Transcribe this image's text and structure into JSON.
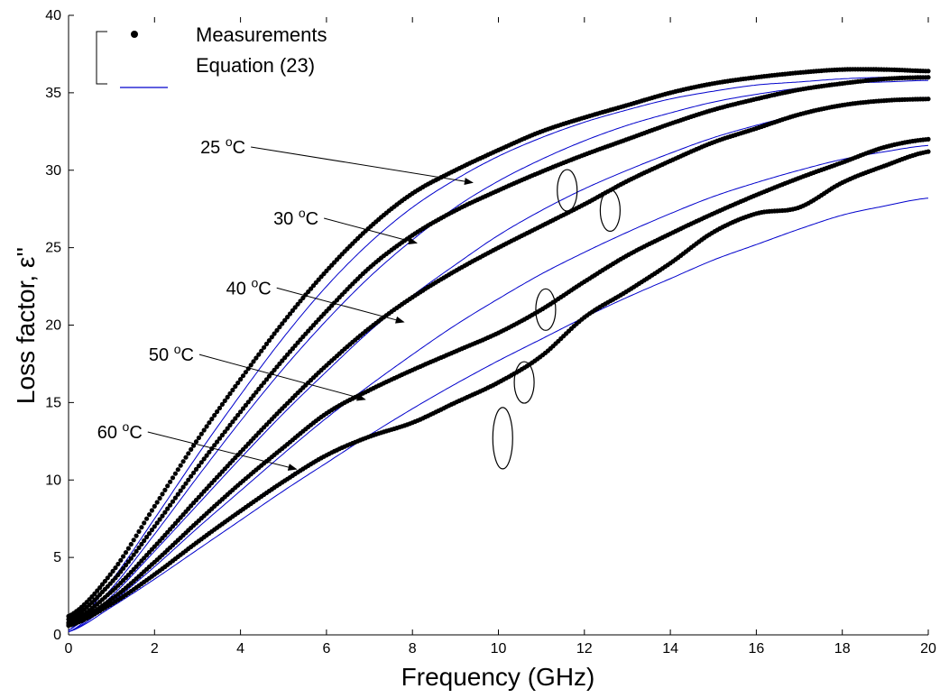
{
  "chart_data": {
    "type": "scatter",
    "title": "",
    "xlabel": "Frequency (GHz)",
    "ylabel": "Loss factor, ε''",
    "xlim": [
      0,
      20
    ],
    "ylim": [
      0,
      40
    ],
    "xticks": [
      0,
      2,
      4,
      6,
      8,
      10,
      12,
      14,
      16,
      18,
      20
    ],
    "yticks": [
      0,
      5,
      10,
      15,
      20,
      25,
      30,
      35,
      40
    ],
    "grid": false,
    "legend": {
      "placement": "top-left",
      "entries": [
        {
          "label": "Measurements",
          "marker": "dot",
          "color": "#000000"
        },
        {
          "label": "Equation (23)",
          "marker": "line",
          "color": "#0000cc"
        }
      ]
    },
    "series": [
      {
        "temperature": "25",
        "measured": {
          "x": [
            0,
            1,
            2,
            3,
            4,
            5,
            6,
            7,
            8,
            9,
            10,
            11,
            12,
            13,
            14,
            15,
            16,
            17,
            18,
            19,
            20
          ],
          "y": [
            1.2,
            4.0,
            8.3,
            12.6,
            16.5,
            20.2,
            23.5,
            26.3,
            28.5,
            30.0,
            31.3,
            32.5,
            33.4,
            34.2,
            35.0,
            35.6,
            36.0,
            36.3,
            36.5,
            36.5,
            36.4
          ]
        },
        "equation": {
          "x": [
            0,
            1,
            2,
            3,
            4,
            5,
            6,
            7,
            8,
            9,
            10,
            11,
            12,
            13,
            14,
            15,
            16,
            17,
            18,
            19,
            20
          ],
          "y": [
            0.3,
            3.5,
            7.5,
            11.6,
            15.5,
            19.2,
            22.5,
            25.3,
            27.6,
            29.4,
            30.9,
            32.1,
            33.1,
            33.9,
            34.6,
            35.1,
            35.5,
            35.7,
            35.9,
            36.0,
            36.0
          ]
        }
      },
      {
        "temperature": "30",
        "measured": {
          "x": [
            0,
            1,
            2,
            3,
            4,
            5,
            6,
            7,
            8,
            9,
            10,
            11,
            12,
            13,
            14,
            15,
            16,
            17,
            18,
            19,
            20
          ],
          "y": [
            1.0,
            3.4,
            7.0,
            10.8,
            14.4,
            17.8,
            20.9,
            23.7,
            25.8,
            27.4,
            28.7,
            29.9,
            31.0,
            32.0,
            33.0,
            33.9,
            34.6,
            35.2,
            35.6,
            35.9,
            36.0
          ]
        },
        "equation": {
          "x": [
            0,
            1,
            2,
            3,
            4,
            5,
            6,
            7,
            8,
            9,
            10,
            11,
            12,
            13,
            14,
            15,
            16,
            17,
            18,
            19,
            20
          ],
          "y": [
            0.3,
            3.0,
            6.5,
            10.2,
            13.8,
            17.2,
            20.3,
            23.1,
            25.5,
            27.6,
            29.3,
            30.7,
            31.9,
            32.9,
            33.7,
            34.4,
            34.9,
            35.3,
            35.6,
            35.7,
            35.8
          ]
        }
      },
      {
        "temperature": "40",
        "measured": {
          "x": [
            0,
            1,
            2,
            3,
            4,
            5,
            6,
            7,
            8,
            9,
            10,
            11,
            12,
            13,
            14,
            15,
            16,
            17,
            18,
            19,
            20
          ],
          "y": [
            0.8,
            2.8,
            5.7,
            8.8,
            11.8,
            14.7,
            17.4,
            19.8,
            21.8,
            23.5,
            25.0,
            26.4,
            27.8,
            29.3,
            30.6,
            31.8,
            32.7,
            33.6,
            34.2,
            34.5,
            34.6
          ]
        },
        "equation": {
          "x": [
            0,
            1,
            2,
            3,
            4,
            5,
            6,
            7,
            8,
            9,
            10,
            11,
            12,
            13,
            14,
            15,
            16,
            17,
            18,
            19,
            20
          ],
          "y": [
            0.2,
            2.5,
            5.4,
            8.4,
            11.4,
            14.3,
            17.0,
            19.6,
            21.9,
            23.9,
            25.8,
            27.4,
            28.8,
            30.0,
            31.1,
            32.1,
            32.9,
            33.6,
            34.1,
            34.5,
            34.7
          ]
        }
      },
      {
        "temperature": "50",
        "measured": {
          "x": [
            0,
            1,
            2,
            3,
            4,
            5,
            6,
            7,
            8,
            9,
            10,
            11,
            12,
            13,
            14,
            15,
            16,
            17,
            18,
            19,
            20
          ],
          "y": [
            0.7,
            2.3,
            4.7,
            7.3,
            9.8,
            12.1,
            14.3,
            15.8,
            17.1,
            18.3,
            19.5,
            21.0,
            22.8,
            24.5,
            25.9,
            27.2,
            28.4,
            29.5,
            30.5,
            31.5,
            32.0
          ]
        },
        "equation": {
          "x": [
            0,
            1,
            2,
            3,
            4,
            5,
            6,
            7,
            8,
            9,
            10,
            11,
            12,
            13,
            14,
            15,
            16,
            17,
            18,
            19,
            20
          ],
          "y": [
            0.2,
            2.1,
            4.4,
            6.9,
            9.3,
            11.7,
            14.0,
            16.1,
            18.1,
            20.0,
            21.7,
            23.3,
            24.7,
            26.0,
            27.2,
            28.3,
            29.2,
            30.0,
            30.7,
            31.2,
            31.6
          ]
        }
      },
      {
        "temperature": "60",
        "measured": {
          "x": [
            0,
            1,
            2,
            3,
            4,
            5,
            6,
            7,
            8,
            9,
            10,
            11,
            12,
            13,
            14,
            15,
            16,
            17,
            18,
            19,
            20
          ],
          "y": [
            0.6,
            2.0,
            3.9,
            6.0,
            8.0,
            9.9,
            11.6,
            12.8,
            13.7,
            15.0,
            16.3,
            18.0,
            20.5,
            22.2,
            24.0,
            26.0,
            27.2,
            27.6,
            29.2,
            30.3,
            31.2
          ]
        },
        "equation": {
          "x": [
            0,
            1,
            2,
            3,
            4,
            5,
            6,
            7,
            8,
            9,
            10,
            11,
            12,
            13,
            14,
            15,
            16,
            17,
            18,
            19,
            20
          ],
          "y": [
            0.2,
            1.8,
            3.6,
            5.5,
            7.4,
            9.3,
            11.1,
            12.9,
            14.6,
            16.2,
            17.7,
            19.1,
            20.5,
            21.8,
            23.0,
            24.2,
            25.2,
            26.2,
            27.1,
            27.7,
            28.2
          ]
        }
      }
    ],
    "annotations": [
      {
        "label": "25",
        "unit": "C",
        "sup": "o",
        "arrow_from": [
          4.2,
          31.5
        ],
        "arrow_to": [
          9.4,
          29.2
        ]
      },
      {
        "label": "30",
        "unit": "C",
        "sup": "o",
        "arrow_from": [
          5.9,
          26.9
        ],
        "arrow_to": [
          8.1,
          25.3
        ]
      },
      {
        "label": "40",
        "unit": "C",
        "sup": "o",
        "arrow_from": [
          4.8,
          22.4
        ],
        "arrow_to": [
          7.8,
          20.2
        ]
      },
      {
        "label": "50",
        "unit": "C",
        "sup": "o",
        "arrow_from": [
          3.0,
          18.1
        ],
        "arrow_to": [
          6.9,
          15.2
        ]
      },
      {
        "label": "60",
        "unit": "C",
        "sup": "o",
        "arrow_from": [
          1.8,
          13.1
        ],
        "arrow_to": [
          5.3,
          10.7
        ]
      }
    ],
    "ellipses": [
      {
        "x": 11.6,
        "y": 28.7
      },
      {
        "x": 12.6,
        "y": 27.4
      },
      {
        "x": 11.1,
        "y": 21.0
      },
      {
        "x": 10.6,
        "y": 16.3
      },
      {
        "x": 10.1,
        "y": 12.7
      }
    ]
  }
}
